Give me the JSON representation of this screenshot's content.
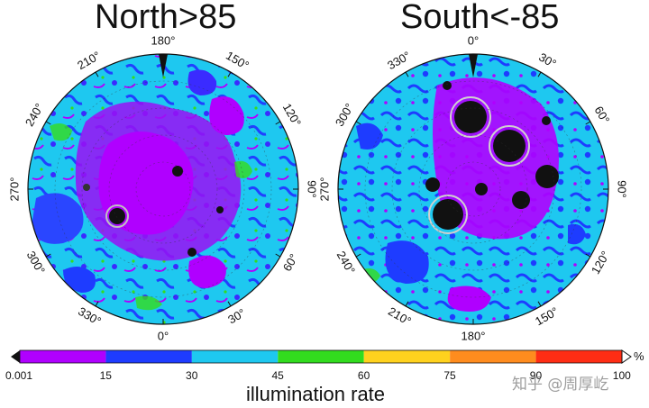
{
  "titles": {
    "north": "North>85",
    "south": "South<-85"
  },
  "north_map": {
    "longitude_ticks": [
      "180°",
      "150°",
      "120°",
      "90°",
      "60°",
      "30°",
      "0°",
      "330°",
      "300°",
      "270°",
      "240°",
      "210°"
    ]
  },
  "south_map": {
    "longitude_ticks": [
      "0°",
      "30°",
      "60°",
      "90°",
      "120°",
      "150°",
      "180°",
      "210°",
      "240°",
      "270°",
      "300°",
      "330°"
    ]
  },
  "colorbar": {
    "title": "illumination rate",
    "unit": "%",
    "tick_labels": [
      "0.001",
      "15",
      "30",
      "45",
      "60",
      "75",
      "90",
      "100"
    ],
    "colors": [
      "#b000ff",
      "#1e3cff",
      "#1ec8f0",
      "#32dc1e",
      "#ffd21e",
      "#ff8c1e",
      "#ff2d14"
    ],
    "range": [
      0.001,
      100
    ]
  },
  "watermark": "知乎 @周厚屹"
}
